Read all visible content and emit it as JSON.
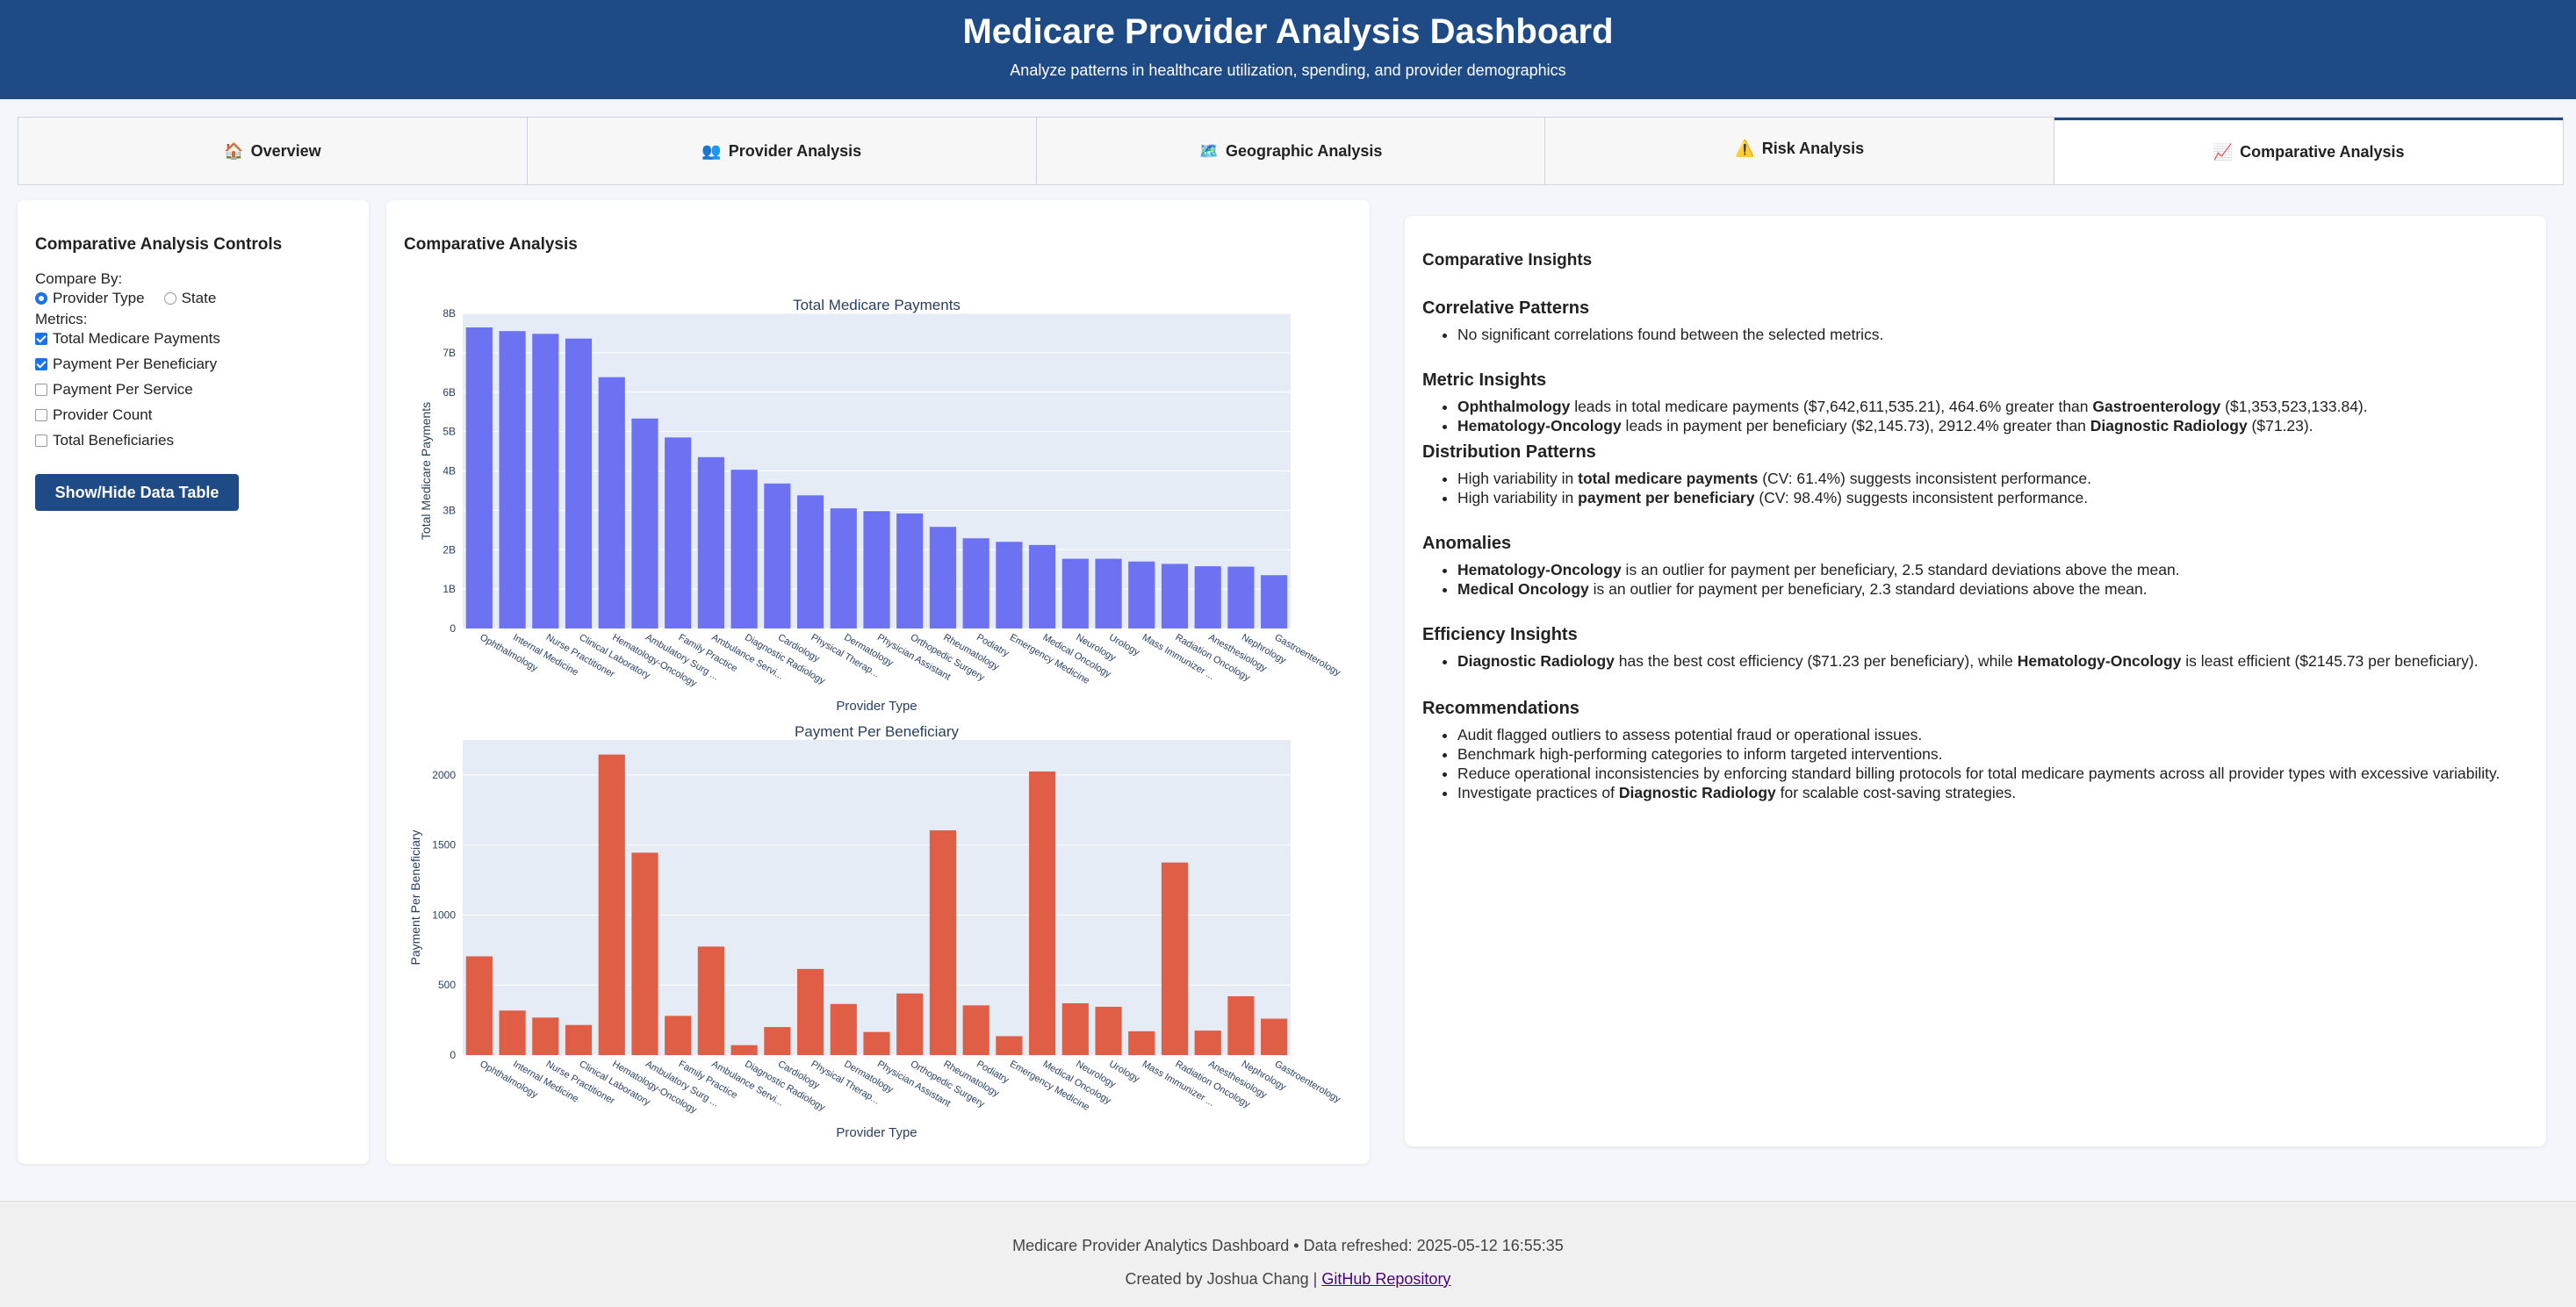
{
  "header": {
    "title": "Medicare Provider Analysis Dashboard",
    "subtitle": "Analyze patterns in healthcare utilization, spending, and provider demographics"
  },
  "tabs": [
    {
      "icon": "🏠",
      "label": "Overview"
    },
    {
      "icon": "👥",
      "label": "Provider Analysis"
    },
    {
      "icon": "🗺️",
      "label": "Geographic Analysis"
    },
    {
      "icon": "⚠️",
      "label": "Risk Analysis"
    },
    {
      "icon": "📈",
      "label": "Comparative Analysis"
    }
  ],
  "controls": {
    "title": "Comparative Analysis Controls",
    "compare_by_label": "Compare By:",
    "compare_options": [
      "Provider Type",
      "State"
    ],
    "metrics_label": "Metrics:",
    "metrics": [
      {
        "label": "Total Medicare Payments",
        "checked": true
      },
      {
        "label": "Payment Per Beneficiary",
        "checked": true
      },
      {
        "label": "Payment Per Service",
        "checked": false
      },
      {
        "label": "Provider Count",
        "checked": false
      },
      {
        "label": "Total Beneficiaries",
        "checked": false
      }
    ],
    "button_label": "Show/Hide Data Table"
  },
  "chart_panel_title": "Comparative Analysis",
  "chart_data": [
    {
      "type": "bar",
      "title": "Total Medicare Payments",
      "xlabel": "Provider Type",
      "ylabel": "Total Medicare Payments",
      "color": "#6c72f2",
      "ylim": [
        0,
        8000000000
      ],
      "yticks": [
        0,
        1000000000,
        2000000000,
        3000000000,
        4000000000,
        5000000000,
        6000000000,
        7000000000,
        8000000000
      ],
      "ytick_labels": [
        "0",
        "1B",
        "2B",
        "3B",
        "4B",
        "5B",
        "6B",
        "7B",
        "8B"
      ],
      "categories": [
        "Ophthalmology",
        "Internal Medicine",
        "Nurse Practitioner",
        "Clinical Laboratory",
        "Hematology-Oncology",
        "Ambulatory Surg ...",
        "Family Practice",
        "Ambulance Servi...",
        "Diagnostic Radiology",
        "Cardiology",
        "Physical Therap...",
        "Dermatology",
        "Physician Assistant",
        "Orthopedic Surgery",
        "Rheumatology",
        "Podiatry",
        "Emergency Medicine",
        "Medical Oncology",
        "Neurology",
        "Urology",
        "Mass Immunizer ...",
        "Radiation Oncology",
        "Anesthesiology",
        "Nephrology",
        "Gastroenterology"
      ],
      "values": [
        7642611535,
        7550000000,
        7480000000,
        7360000000,
        6380000000,
        5330000000,
        4850000000,
        4350000000,
        4030000000,
        3680000000,
        3380000000,
        3050000000,
        2980000000,
        2920000000,
        2580000000,
        2290000000,
        2200000000,
        2120000000,
        1770000000,
        1770000000,
        1700000000,
        1640000000,
        1580000000,
        1570000000,
        1353523134
      ]
    },
    {
      "type": "bar",
      "title": "Payment Per Beneficiary",
      "xlabel": "Provider Type",
      "ylabel": "Payment Per Beneficiary",
      "color": "#e05e45",
      "ylim": [
        0,
        2250
      ],
      "yticks": [
        0,
        500,
        1000,
        1500,
        2000
      ],
      "ytick_labels": [
        "0",
        "500",
        "1000",
        "1500",
        "2000"
      ],
      "categories": [
        "Ophthalmology",
        "Internal Medicine",
        "Nurse Practitioner",
        "Clinical Laboratory",
        "Hematology-Oncology",
        "Ambulatory Surg ...",
        "Family Practice",
        "Ambulance Servi...",
        "Diagnostic Radiology",
        "Cardiology",
        "Physical Therap...",
        "Dermatology",
        "Physician Assistant",
        "Orthopedic Surgery",
        "Rheumatology",
        "Podiatry",
        "Emergency Medicine",
        "Medical Oncology",
        "Neurology",
        "Urology",
        "Mass Immunizer ...",
        "Radiation Oncology",
        "Anesthesiology",
        "Nephrology",
        "Gastroenterology"
      ],
      "values": [
        705,
        318,
        268,
        215,
        2146,
        1445,
        280,
        775,
        71,
        200,
        615,
        365,
        165,
        440,
        1605,
        355,
        135,
        2025,
        370,
        345,
        170,
        1375,
        175,
        420,
        260
      ]
    }
  ],
  "insights": {
    "title": "Comparative Insights",
    "sections": [
      {
        "heading": "Correlative Patterns",
        "items": [
          [
            {
              "t": "No significant correlations found between the selected metrics."
            }
          ]
        ]
      },
      {
        "heading": "Metric Insights",
        "items": [
          [
            {
              "b": "Ophthalmology"
            },
            {
              "t": " leads in total medicare payments ($7,642,611,535.21), 464.6% greater than "
            },
            {
              "b": "Gastroenterology"
            },
            {
              "t": " ($1,353,523,133.84)."
            }
          ],
          [
            {
              "b": "Hematology-Oncology"
            },
            {
              "t": " leads in payment per beneficiary ($2,145.73), 2912.4% greater than "
            },
            {
              "b": "Diagnostic Radiology"
            },
            {
              "t": " ($71.23)."
            }
          ]
        ]
      },
      {
        "heading": "Distribution Patterns",
        "items": [
          [
            {
              "t": "High variability in "
            },
            {
              "b": "total medicare payments"
            },
            {
              "t": " (CV: 61.4%) suggests inconsistent performance."
            }
          ],
          [
            {
              "t": "High variability in "
            },
            {
              "b": "payment per beneficiary"
            },
            {
              "t": " (CV: 98.4%) suggests inconsistent performance."
            }
          ]
        ]
      },
      {
        "heading": "Anomalies",
        "items": [
          [
            {
              "b": "Hematology-Oncology"
            },
            {
              "t": " is an outlier for payment per beneficiary, 2.5 standard deviations above the mean."
            }
          ],
          [
            {
              "b": "Medical Oncology"
            },
            {
              "t": " is an outlier for payment per beneficiary, 2.3 standard deviations above the mean."
            }
          ]
        ]
      },
      {
        "heading": "Efficiency Insights",
        "items": [
          [
            {
              "b": "Diagnostic Radiology"
            },
            {
              "t": " has the best cost efficiency ($71.23 per beneficiary), while "
            },
            {
              "b": "Hematology-Oncology"
            },
            {
              "t": " is least efficient ($2145.73 per beneficiary)."
            }
          ]
        ]
      },
      {
        "heading": "Recommendations",
        "items": [
          [
            {
              "t": "Audit flagged outliers to assess potential fraud or operational issues."
            }
          ],
          [
            {
              "t": "Benchmark high-performing categories to inform targeted interventions."
            }
          ],
          [
            {
              "t": "Reduce operational inconsistencies by enforcing standard billing protocols for total medicare payments across all provider types with excessive variability."
            }
          ],
          [
            {
              "t": "Investigate practices of "
            },
            {
              "b": "Diagnostic Radiology"
            },
            {
              "t": " for scalable cost-saving strategies."
            }
          ]
        ]
      }
    ]
  },
  "footer": {
    "line1": "Medicare Provider Analytics Dashboard • Data refreshed: 2025-05-12 16:55:35",
    "created_by": "Created by Joshua Chang |",
    "link_text": "GitHub Repository"
  }
}
